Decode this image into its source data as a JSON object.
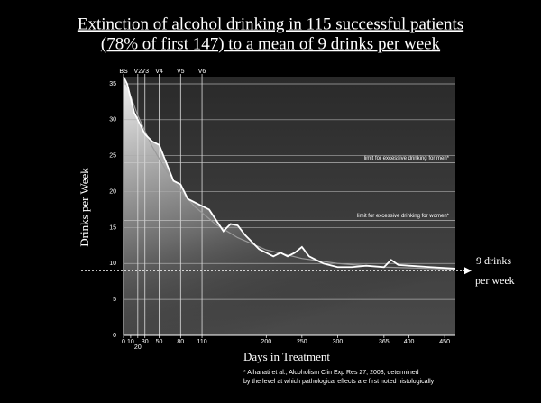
{
  "chart_data": {
    "type": "line",
    "title": [
      "Extinction of alcohol drinking in 115 successful patients",
      "(78% of first 147) to a mean of 9 drinks per week"
    ],
    "x_label": "Days in Treatment",
    "y_label": "Drinks per Week",
    "xlim": [
      0,
      465
    ],
    "ylim": [
      0,
      36
    ],
    "xticks": [
      0,
      10,
      20,
      30,
      50,
      80,
      110,
      200,
      250,
      300,
      365,
      400,
      450
    ],
    "yticks": [
      0,
      5,
      10,
      15,
      20,
      25,
      30,
      35
    ],
    "grid": true,
    "visits": {
      "labels": [
        "BS",
        "V2",
        "V3",
        "V4",
        "V5",
        "V6"
      ],
      "x": [
        0,
        20,
        30,
        50,
        80,
        110
      ]
    },
    "series": [
      {
        "color": "#ffffff",
        "x": [
          0,
          5,
          10,
          15,
          20,
          25,
          30,
          40,
          50,
          60,
          70,
          80,
          90,
          100,
          110,
          120,
          130,
          140,
          150,
          160,
          170,
          180,
          190,
          200,
          210,
          220,
          230,
          240,
          250,
          260,
          270,
          280,
          300,
          320,
          340,
          365,
          375,
          385,
          400,
          430,
          465
        ],
        "values": [
          36,
          35,
          33,
          31,
          30,
          29,
          28,
          27,
          26.5,
          24,
          21.5,
          21,
          19,
          18.5,
          18,
          17.5,
          16,
          14.5,
          15.5,
          15.3,
          14,
          13,
          12,
          11.5,
          11,
          11.5,
          11,
          11.5,
          12.3,
          11,
          10.5,
          10,
          9.5,
          9.5,
          9.7,
          9.5,
          10.5,
          9.8,
          9.7,
          9.5,
          9.3
        ]
      },
      {
        "color": "#9a9a9a",
        "x": [
          0,
          20,
          40,
          60,
          80,
          100,
          130,
          160,
          200,
          250,
          300,
          365,
          465
        ],
        "values": [
          36,
          30.6,
          26.3,
          22.9,
          20.1,
          17.9,
          15.4,
          13.6,
          11.9,
          10.7,
          10.0,
          9.5,
          9.2
        ]
      }
    ],
    "annotations": [
      {
        "text": [
          "9 drinks",
          "per week"
        ],
        "y": 9
      },
      {
        "text": [
          "limit for excessive drinking for men*"
        ],
        "y": 24
      },
      {
        "text": [
          "limit for excessive drinking for women*"
        ],
        "y": 16
      }
    ],
    "footnote": [
      "* Alhanati et al., Alcoholism Clin Exp Res 27, 2003, determined",
      "by the level at which pathological effects are first noted histologically"
    ]
  }
}
